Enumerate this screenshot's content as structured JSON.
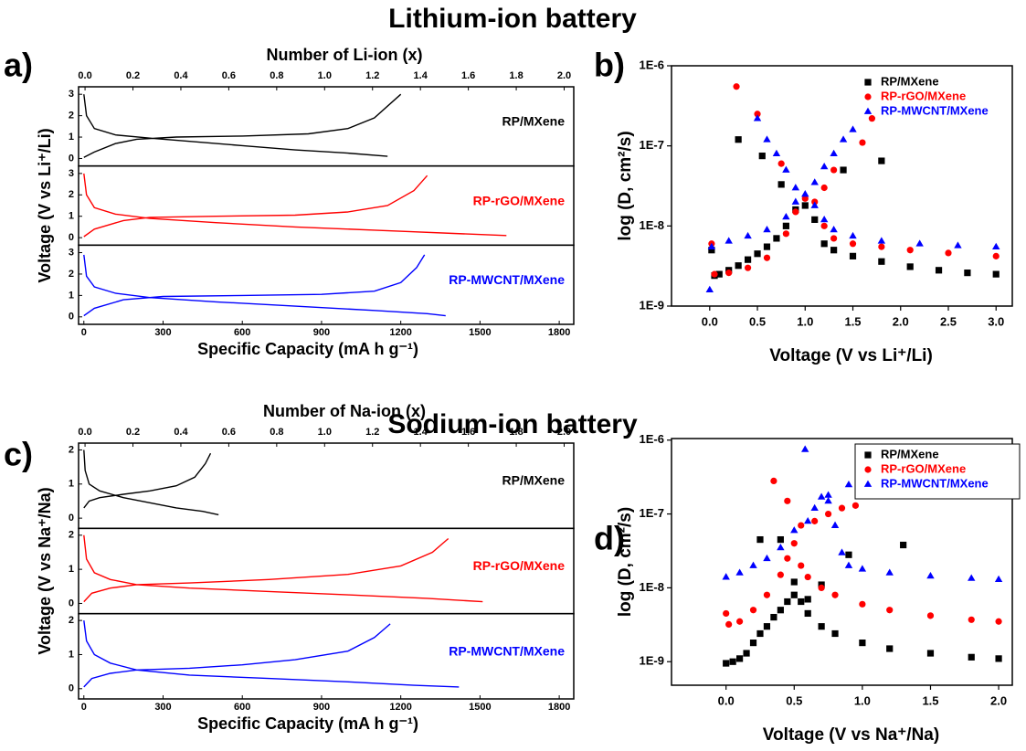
{
  "headings": [
    "Lithium-ion battery",
    "Sodium-ion battery"
  ],
  "chart_data": [
    {
      "type": "line",
      "label": "a)",
      "x2label": "Number of Li-ion (x)",
      "xlabel": "Specific Capacity (mA h g⁻¹)",
      "ylabel": "Voltage (V vs Li⁺/Li)",
      "xlim": [
        -20,
        1855
      ],
      "xticks": [
        0,
        300,
        600,
        900,
        1200,
        1500,
        1800
      ],
      "x2lim": [
        -0.027,
        2.04
      ],
      "x2ticks": [
        {
          "value": 0,
          "label": "0.0"
        },
        0.2,
        0.4,
        0.6,
        0.8,
        {
          "value": 1,
          "label": "1.0"
        },
        1.2,
        1.4,
        1.6,
        1.8,
        {
          "value": 2,
          "label": "2.0"
        }
      ],
      "series": [
        {
          "name": "RP/MXene",
          "color": "#000000",
          "ylim": [
            -0.35,
            3.35
          ],
          "yticks": [
            0,
            1,
            2,
            3
          ],
          "x": [
            0,
            10,
            40,
            120,
            250,
            400,
            600,
            800,
            1000,
            1150,
            null,
            0,
            40,
            120,
            200,
            350,
            600,
            850,
            1000,
            1100,
            1200
          ],
          "values": [
            3.0,
            2.0,
            1.4,
            1.1,
            0.95,
            0.8,
            0.6,
            0.4,
            0.25,
            0.1,
            null,
            0.05,
            0.3,
            0.7,
            0.9,
            1.0,
            1.05,
            1.15,
            1.4,
            1.9,
            3.0
          ]
        },
        {
          "name": "RP-rGO/MXene",
          "color": "#ff0000",
          "ylim": [
            -0.35,
            3.35
          ],
          "yticks": [
            0,
            1,
            2,
            3
          ],
          "x": [
            0,
            10,
            40,
            120,
            250,
            500,
            800,
            1100,
            1400,
            1600,
            null,
            0,
            40,
            150,
            250,
            500,
            800,
            1000,
            1150,
            1250,
            1300
          ],
          "values": [
            3.0,
            2.0,
            1.4,
            1.1,
            0.9,
            0.7,
            0.5,
            0.35,
            0.2,
            0.1,
            null,
            0.05,
            0.4,
            0.8,
            0.95,
            1.0,
            1.05,
            1.2,
            1.5,
            2.2,
            2.9
          ]
        },
        {
          "name": "RP-MWCNT/MXene",
          "color": "#0000ff",
          "ylim": [
            -0.35,
            3.35
          ],
          "yticks": [
            0,
            1,
            2,
            3
          ],
          "x": [
            0,
            10,
            40,
            120,
            250,
            500,
            800,
            1100,
            1300,
            1370,
            null,
            0,
            40,
            150,
            300,
            600,
            900,
            1100,
            1200,
            1260,
            1290
          ],
          "values": [
            2.9,
            1.9,
            1.4,
            1.1,
            0.9,
            0.7,
            0.5,
            0.3,
            0.15,
            0.05,
            null,
            0.05,
            0.4,
            0.8,
            0.95,
            1.0,
            1.05,
            1.2,
            1.6,
            2.3,
            2.9
          ]
        }
      ]
    },
    {
      "type": "scatter",
      "label": "b)",
      "xlabel": "Voltage (V vs Li⁺/Li)",
      "ylabel": "log (D, cm²/s)",
      "yscale": "log",
      "legend": "upper right",
      "legend_frame": false,
      "xlim": [
        -0.4,
        3.17
      ],
      "xticks": [
        {
          "value": 0,
          "label": "0.0"
        },
        0.5,
        {
          "value": 1,
          "label": "1.0"
        },
        1.5,
        {
          "value": 2,
          "label": "2.0"
        },
        2.5,
        {
          "value": 3,
          "label": "3.0"
        }
      ],
      "ylim": [
        1e-09,
        1e-06
      ],
      "yticks": [
        {
          "value": 1e-09,
          "label": "1E-9"
        },
        {
          "value": 1e-08,
          "label": "1E-8"
        },
        {
          "value": 1e-07,
          "label": "1E-7"
        },
        {
          "value": 1e-06,
          "label": "1E-6"
        }
      ],
      "series": [
        {
          "name": "RP/MXene",
          "color": "#000000",
          "marker": "square",
          "x": [
            0.02,
            0.05,
            0.1,
            0.2,
            0.3,
            0.4,
            0.5,
            0.6,
            0.7,
            0.8,
            0.9,
            1.0,
            1.1,
            1.2,
            1.3,
            1.5,
            1.8,
            2.1,
            2.4,
            2.7,
            3.0,
            0.3,
            0.55,
            0.75,
            1.4,
            1.8
          ],
          "values": [
            5e-09,
            2.4e-09,
            2.5e-09,
            2.8e-09,
            3.2e-09,
            3.8e-09,
            4.5e-09,
            5.5e-09,
            7e-09,
            1e-08,
            1.6e-08,
            1.8e-08,
            1.2e-08,
            6e-09,
            5e-09,
            4.2e-09,
            3.6e-09,
            3.1e-09,
            2.8e-09,
            2.6e-09,
            2.5e-09,
            1.2e-07,
            7.5e-08,
            3.3e-08,
            5e-08,
            6.5e-08
          ]
        },
        {
          "name": "RP-rGO/MXene",
          "color": "#ff0000",
          "marker": "circle",
          "x": [
            0.02,
            0.05,
            0.2,
            0.4,
            0.6,
            0.8,
            0.9,
            1.0,
            1.1,
            1.2,
            1.3,
            1.5,
            1.8,
            2.1,
            2.5,
            3.0,
            0.28,
            0.5,
            0.75,
            1.2,
            1.3,
            1.6,
            1.7
          ],
          "values": [
            6e-09,
            2.5e-09,
            2.6e-09,
            3e-09,
            4e-09,
            8e-09,
            1.5e-08,
            2.2e-08,
            2e-08,
            1e-08,
            7e-09,
            6e-09,
            5.5e-09,
            5e-09,
            4.6e-09,
            4.2e-09,
            5.5e-07,
            2.5e-07,
            6e-08,
            3e-08,
            5e-08,
            1.1e-07,
            2.2e-07
          ]
        },
        {
          "name": "RP-MWCNT/MXene",
          "color": "#0000ff",
          "marker": "triangle",
          "x": [
            0.0,
            0.02,
            0.2,
            0.4,
            0.6,
            0.8,
            0.9,
            1.0,
            1.1,
            1.2,
            1.3,
            1.5,
            1.8,
            2.2,
            2.6,
            3.0,
            0.5,
            0.6,
            0.7,
            0.8,
            0.9,
            1.1,
            1.2,
            1.3,
            1.4,
            1.5
          ],
          "values": [
            1.6e-09,
            5.5e-09,
            6.5e-09,
            7.5e-09,
            9e-09,
            1.3e-08,
            2e-08,
            2.5e-08,
            1.8e-08,
            1.2e-08,
            9e-09,
            7.5e-09,
            6.5e-09,
            6e-09,
            5.7e-09,
            5.5e-09,
            2.2e-07,
            1.2e-07,
            8e-08,
            5e-08,
            3e-08,
            3.5e-08,
            5.5e-08,
            8e-08,
            1.2e-07,
            1.6e-07
          ]
        }
      ]
    },
    {
      "type": "line",
      "label": "c)",
      "x2label": "Number of Na-ion (x)",
      "xlabel": "Specific Capacity (mA h g⁻¹)",
      "ylabel": "Voltage (V vs Na⁺/Na)",
      "xlim": [
        -20,
        1855
      ],
      "xticks": [
        0,
        300,
        600,
        900,
        1200,
        1500,
        1800
      ],
      "x2lim": [
        -0.027,
        2.04
      ],
      "x2ticks": [
        {
          "value": 0,
          "label": "0.0"
        },
        0.2,
        0.4,
        0.6,
        0.8,
        {
          "value": 1,
          "label": "1.0"
        },
        1.2,
        1.4,
        1.6,
        1.8,
        {
          "value": 2,
          "label": "2.0"
        }
      ],
      "series": [
        {
          "name": "RP/MXene",
          "color": "#000000",
          "ylim": [
            -0.3,
            2.2
          ],
          "yticks": [
            0,
            1,
            2
          ],
          "x": [
            0,
            5,
            20,
            60,
            150,
            250,
            350,
            450,
            510,
            null,
            0,
            20,
            60,
            150,
            250,
            350,
            420,
            460,
            480
          ],
          "values": [
            2.0,
            1.4,
            1.0,
            0.8,
            0.6,
            0.45,
            0.3,
            0.2,
            0.1,
            null,
            0.3,
            0.5,
            0.6,
            0.7,
            0.8,
            0.95,
            1.2,
            1.6,
            1.9
          ]
        },
        {
          "name": "RP-rGO/MXene",
          "color": "#ff0000",
          "ylim": [
            -0.3,
            2.2
          ],
          "yticks": [
            0,
            1,
            2
          ],
          "x": [
            0,
            10,
            40,
            100,
            200,
            400,
            700,
            1000,
            1300,
            1510,
            null,
            0,
            30,
            100,
            200,
            400,
            700,
            1000,
            1200,
            1320,
            1380
          ],
          "values": [
            2.0,
            1.3,
            0.9,
            0.7,
            0.55,
            0.45,
            0.35,
            0.25,
            0.15,
            0.05,
            null,
            0.05,
            0.3,
            0.45,
            0.55,
            0.6,
            0.7,
            0.85,
            1.1,
            1.5,
            1.9
          ]
        },
        {
          "name": "RP-MWCNT/MXene",
          "color": "#0000ff",
          "ylim": [
            -0.3,
            2.2
          ],
          "yticks": [
            0,
            1,
            2
          ],
          "x": [
            0,
            10,
            40,
            100,
            200,
            400,
            700,
            1000,
            1250,
            1420,
            null,
            0,
            30,
            100,
            200,
            400,
            600,
            800,
            1000,
            1100,
            1160
          ],
          "values": [
            2.0,
            1.4,
            1.0,
            0.75,
            0.55,
            0.4,
            0.3,
            0.2,
            0.1,
            0.05,
            null,
            0.05,
            0.3,
            0.45,
            0.55,
            0.6,
            0.7,
            0.85,
            1.1,
            1.5,
            1.9
          ]
        }
      ]
    },
    {
      "type": "scatter",
      "label": "d)",
      "xlabel": "Voltage (V vs Na⁺/Na)",
      "ylabel": "log (D, cm²/s)",
      "yscale": "log",
      "legend": "upper right",
      "legend_frame": true,
      "xlim": [
        -0.4,
        2.1
      ],
      "xticks": [
        {
          "value": 0,
          "label": "0.0"
        },
        0.5,
        {
          "value": 1,
          "label": "1.0"
        },
        1.5,
        {
          "value": 2,
          "label": "2.0"
        }
      ],
      "ylim": [
        4.8e-10,
        1.05e-06
      ],
      "yticks": [
        {
          "value": 1e-09,
          "label": "1E-9"
        },
        {
          "value": 1e-08,
          "label": "1E-8"
        },
        {
          "value": 1e-07,
          "label": "1E-7"
        },
        {
          "value": 1e-06,
          "label": "1E-6"
        }
      ],
      "series": [
        {
          "name": "RP/MXene",
          "color": "#000000",
          "marker": "square",
          "x": [
            0,
            0.05,
            0.1,
            0.15,
            0.2,
            0.25,
            0.3,
            0.35,
            0.4,
            0.45,
            0.5,
            0.55,
            0.6,
            0.7,
            0.8,
            1.0,
            1.2,
            1.5,
            1.8,
            2.0,
            0.25,
            0.4,
            0.5,
            0.6,
            0.9,
            1.3,
            0.7
          ],
          "values": [
            9.5e-10,
            1e-09,
            1.1e-09,
            1.3e-09,
            1.8e-09,
            2.4e-09,
            3e-09,
            4e-09,
            5e-09,
            6.5e-09,
            8e-09,
            6.5e-09,
            4.5e-09,
            3e-09,
            2.4e-09,
            1.8e-09,
            1.5e-09,
            1.3e-09,
            1.15e-09,
            1.1e-09,
            4.5e-08,
            4.5e-08,
            1.2e-08,
            7e-09,
            2.8e-08,
            3.8e-08,
            1.1e-08
          ]
        },
        {
          "name": "RP-rGO/MXene",
          "color": "#ff0000",
          "marker": "circle",
          "x": [
            0,
            0.02,
            0.1,
            0.2,
            0.3,
            0.4,
            0.45,
            0.5,
            0.55,
            0.6,
            0.7,
            0.8,
            1.0,
            1.2,
            1.5,
            1.8,
            2.0,
            0.35,
            0.45,
            0.55,
            0.65,
            0.75,
            0.85,
            0.95,
            1.0
          ],
          "values": [
            4.5e-09,
            3.2e-09,
            3.5e-09,
            5e-09,
            8e-09,
            1.5e-08,
            2.5e-08,
            4e-08,
            2e-08,
            1.4e-08,
            1e-08,
            8e-09,
            6e-09,
            5e-09,
            4.2e-09,
            3.7e-09,
            3.5e-09,
            2.8e-07,
            1.5e-07,
            7e-08,
            8e-08,
            1e-07,
            1.2e-07,
            1.3e-07,
            2e-07
          ]
        },
        {
          "name": "RP-MWCNT/MXene",
          "color": "#0000ff",
          "marker": "triangle",
          "x": [
            0,
            0.1,
            0.2,
            0.3,
            0.4,
            0.5,
            0.6,
            0.65,
            0.7,
            0.75,
            0.8,
            0.85,
            0.9,
            1.0,
            1.2,
            1.5,
            1.8,
            2.0,
            0.58,
            0.75,
            0.9,
            1.0
          ],
          "values": [
            1.4e-08,
            1.6e-08,
            2e-08,
            2.5e-08,
            3.5e-08,
            6e-08,
            8e-08,
            1.2e-07,
            1.7e-07,
            1.5e-07,
            7e-08,
            3e-08,
            2e-08,
            1.8e-08,
            1.6e-08,
            1.45e-08,
            1.35e-08,
            1.3e-08,
            7.5e-07,
            1.8e-07,
            2.5e-07,
            3e-07
          ]
        }
      ]
    }
  ]
}
